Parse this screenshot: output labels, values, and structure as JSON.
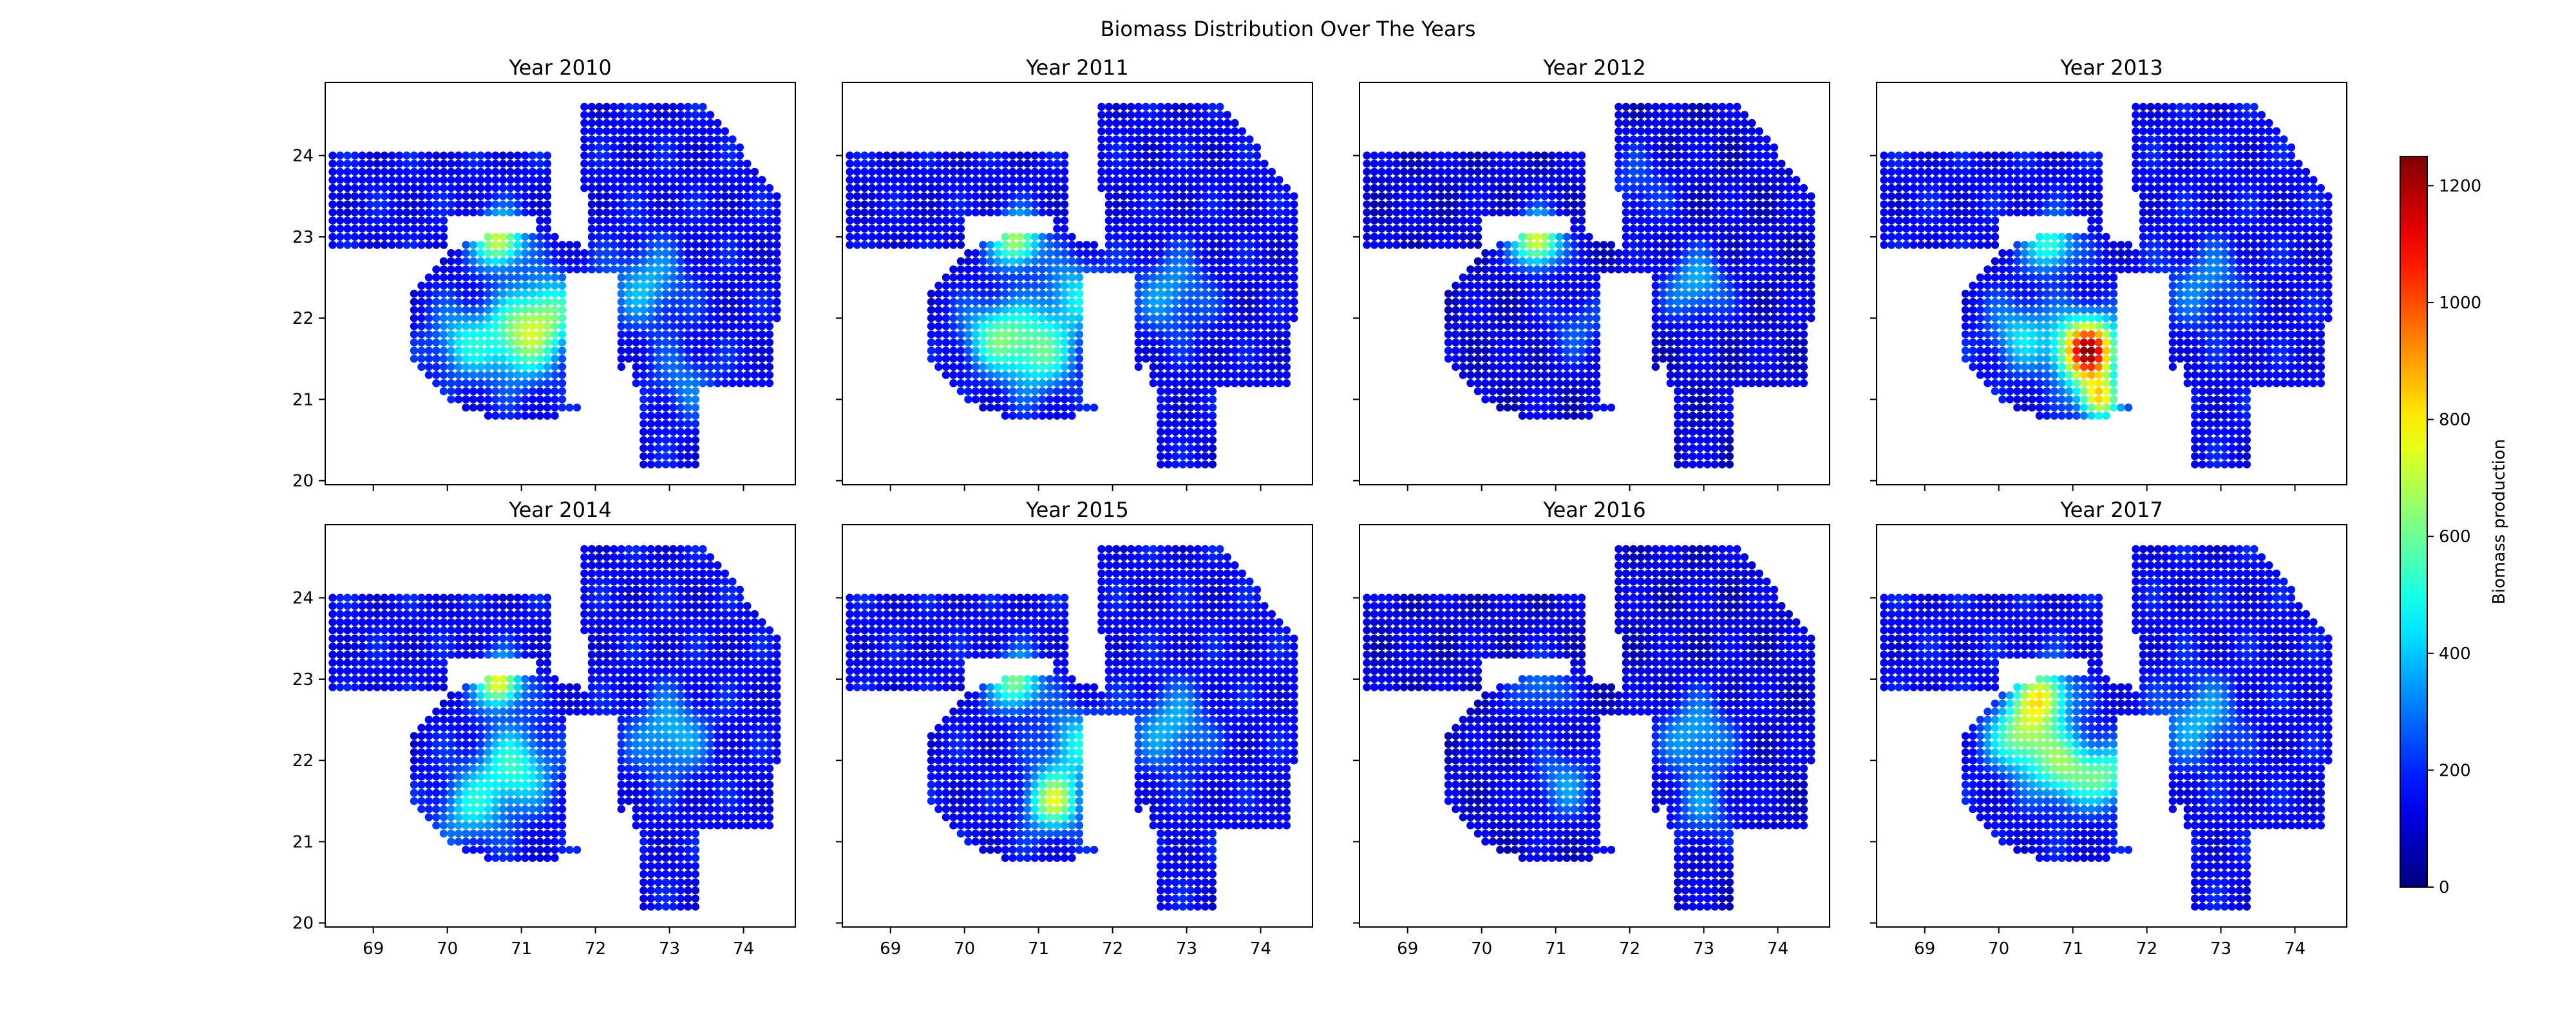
{
  "chart_data": {
    "type": "heatmap",
    "title": "Biomass Distribution Over The Years",
    "colorbar": {
      "label": "Biomass production",
      "colormap": "jet",
      "range": [
        0,
        1250
      ],
      "ticks": [
        0,
        200,
        400,
        600,
        800,
        1000,
        1200
      ]
    },
    "x_ticks": [
      69,
      70,
      71,
      72,
      73,
      74
    ],
    "y_ticks": [
      20,
      21,
      22,
      23,
      24
    ],
    "xlim": [
      68.35,
      74.7
    ],
    "ylim": [
      19.95,
      24.9
    ],
    "grid_step": 0.1,
    "region_description_shapes": {
      "saurashtra": {
        "center": [
          71.0,
          21.9
        ],
        "radii": [
          1.55,
          1.15
        ]
      },
      "kutch": {
        "x": [
          68.4,
          71.4
        ],
        "y": [
          22.9,
          24.05
        ]
      },
      "mainland": {
        "x": [
          71.7,
          74.5
        ],
        "y": [
          20.2,
          24.7
        ]
      }
    },
    "panels": [
      {
        "title": "Year 2010",
        "base": 150,
        "hotspots": [
          {
            "lon": 70.7,
            "lat": 22.95,
            "r": 0.22,
            "v": 750
          },
          {
            "lon": 71.0,
            "lat": 21.75,
            "r": 0.35,
            "v": 620
          },
          {
            "lon": 71.4,
            "lat": 22.1,
            "r": 0.3,
            "v": 480
          },
          {
            "lon": 70.2,
            "lat": 21.7,
            "r": 0.3,
            "v": 420
          },
          {
            "lon": 72.7,
            "lat": 22.4,
            "r": 0.35,
            "v": 380
          },
          {
            "lon": 73.2,
            "lat": 21.2,
            "r": 0.3,
            "v": 300
          }
        ]
      },
      {
        "title": "Year 2011",
        "base": 140,
        "hotspots": [
          {
            "lon": 70.7,
            "lat": 22.95,
            "r": 0.22,
            "v": 700
          },
          {
            "lon": 71.0,
            "lat": 21.6,
            "r": 0.35,
            "v": 560
          },
          {
            "lon": 70.4,
            "lat": 21.8,
            "r": 0.3,
            "v": 500
          },
          {
            "lon": 71.5,
            "lat": 22.3,
            "r": 0.3,
            "v": 420
          },
          {
            "lon": 72.8,
            "lat": 22.3,
            "r": 0.35,
            "v": 350
          }
        ]
      },
      {
        "title": "Year 2012",
        "base": 110,
        "hotspots": [
          {
            "lon": 70.75,
            "lat": 22.95,
            "r": 0.22,
            "v": 780
          },
          {
            "lon": 72.9,
            "lat": 22.4,
            "r": 0.3,
            "v": 380
          },
          {
            "lon": 71.3,
            "lat": 21.9,
            "r": 0.3,
            "v": 260
          },
          {
            "lon": 72.1,
            "lat": 23.6,
            "r": 0.35,
            "v": 240
          }
        ]
      },
      {
        "title": "Year 2013",
        "base": 150,
        "hotspots": [
          {
            "lon": 71.2,
            "lat": 21.6,
            "r": 0.28,
            "v": 1200
          },
          {
            "lon": 71.35,
            "lat": 21.0,
            "r": 0.18,
            "v": 780
          },
          {
            "lon": 70.7,
            "lat": 22.9,
            "r": 0.22,
            "v": 560
          },
          {
            "lon": 70.3,
            "lat": 21.8,
            "r": 0.3,
            "v": 420
          },
          {
            "lon": 72.8,
            "lat": 22.4,
            "r": 0.35,
            "v": 320
          }
        ]
      },
      {
        "title": "Year 2014",
        "base": 150,
        "hotspots": [
          {
            "lon": 70.7,
            "lat": 22.95,
            "r": 0.2,
            "v": 800
          },
          {
            "lon": 70.9,
            "lat": 21.9,
            "r": 0.35,
            "v": 520
          },
          {
            "lon": 70.3,
            "lat": 21.4,
            "r": 0.3,
            "v": 420
          },
          {
            "lon": 73.0,
            "lat": 22.3,
            "r": 0.35,
            "v": 400
          }
        ]
      },
      {
        "title": "Year 2015",
        "base": 150,
        "hotspots": [
          {
            "lon": 71.2,
            "lat": 21.5,
            "r": 0.25,
            "v": 700
          },
          {
            "lon": 70.7,
            "lat": 22.95,
            "r": 0.22,
            "v": 650
          },
          {
            "lon": 71.5,
            "lat": 22.2,
            "r": 0.3,
            "v": 450
          },
          {
            "lon": 72.8,
            "lat": 22.4,
            "r": 0.35,
            "v": 380
          }
        ]
      },
      {
        "title": "Year 2016",
        "base": 110,
        "hotspots": [
          {
            "lon": 71.1,
            "lat": 21.7,
            "r": 0.3,
            "v": 330
          },
          {
            "lon": 72.9,
            "lat": 22.3,
            "r": 0.35,
            "v": 380
          },
          {
            "lon": 70.8,
            "lat": 22.9,
            "r": 0.25,
            "v": 330
          },
          {
            "lon": 73.0,
            "lat": 21.4,
            "r": 0.3,
            "v": 300
          }
        ]
      },
      {
        "title": "Year 2017",
        "base": 150,
        "hotspots": [
          {
            "lon": 70.6,
            "lat": 22.8,
            "r": 0.25,
            "v": 720
          },
          {
            "lon": 70.3,
            "lat": 22.3,
            "r": 0.3,
            "v": 640
          },
          {
            "lon": 70.9,
            "lat": 21.9,
            "r": 0.3,
            "v": 600
          },
          {
            "lon": 71.5,
            "lat": 21.8,
            "r": 0.25,
            "v": 520
          },
          {
            "lon": 72.7,
            "lat": 22.5,
            "r": 0.35,
            "v": 380
          }
        ]
      }
    ]
  }
}
